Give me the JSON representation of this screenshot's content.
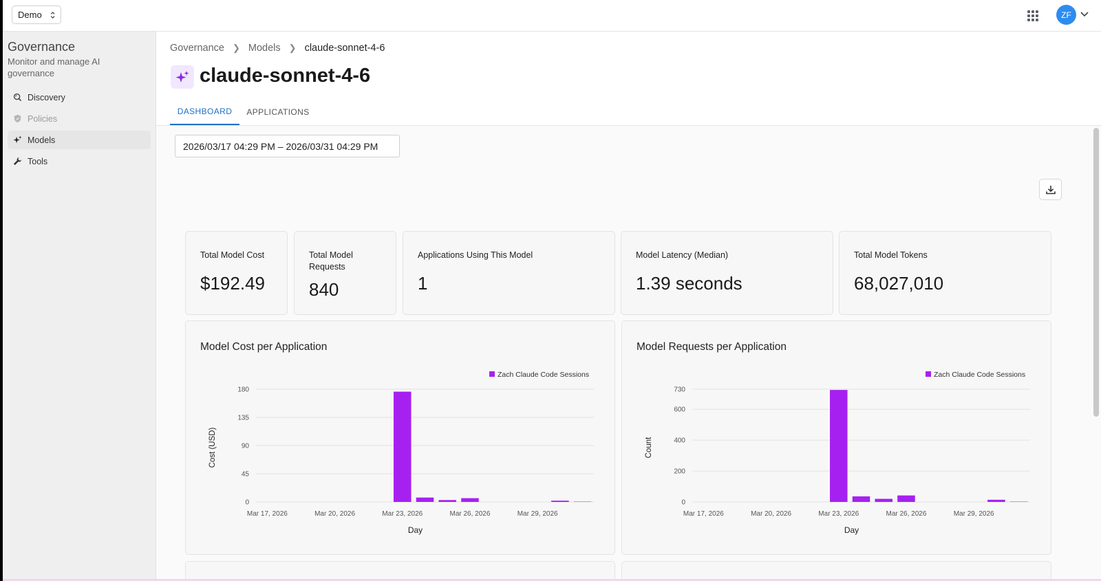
{
  "topbar": {
    "org_select": "Demo",
    "avatar_initials": "ZF"
  },
  "sidebar": {
    "title": "Governance",
    "subtitle": "Monitor and manage AI governance",
    "items": [
      {
        "label": "Discovery",
        "icon": "discovery-icon",
        "state": "normal"
      },
      {
        "label": "Policies",
        "icon": "shield-icon",
        "state": "disabled"
      },
      {
        "label": "Models",
        "icon": "sparkle-icon",
        "state": "active"
      },
      {
        "label": "Tools",
        "icon": "wrench-icon",
        "state": "normal"
      }
    ]
  },
  "breadcrumb": [
    "Governance",
    "Models",
    "claude-sonnet-4-6"
  ],
  "page": {
    "title": "claude-sonnet-4-6",
    "tabs": [
      "DASHBOARD",
      "APPLICATIONS"
    ],
    "active_tab": "DASHBOARD",
    "date_range": "2026/03/17 04:29 PM – 2026/03/31 04:29 PM"
  },
  "stats": [
    {
      "label": "Total Model Cost",
      "value": "$192.49"
    },
    {
      "label": "Total Model Requests",
      "value": "840"
    },
    {
      "label": "Applications Using This Model",
      "value": "1"
    },
    {
      "label": "Model Latency (Median)",
      "value": "1.39 seconds"
    },
    {
      "label": "Total Model Tokens",
      "value": "68,027,010"
    }
  ],
  "colors": {
    "accent": "#1f6fc5",
    "series": "#a621f0",
    "avatar": "#2d8cf0"
  },
  "chart_data": [
    {
      "type": "bar",
      "title": "Model Cost per Application",
      "xlabel": "Day",
      "ylabel": "Cost (USD)",
      "x": [
        "Mar 17, 2026",
        "Mar 18, 2026",
        "Mar 19, 2026",
        "Mar 20, 2026",
        "Mar 21, 2026",
        "Mar 22, 2026",
        "Mar 23, 2026",
        "Mar 24, 2026",
        "Mar 25, 2026",
        "Mar 26, 2026",
        "Mar 27, 2026",
        "Mar 28, 2026",
        "Mar 29, 2026",
        "Mar 30, 2026",
        "Mar 31, 2026"
      ],
      "x_ticks": [
        "Mar 17, 2026",
        "Mar 20, 2026",
        "Mar 23, 2026",
        "Mar 26, 2026",
        "Mar 29, 2026"
      ],
      "y_ticks": [
        0,
        45,
        90,
        135,
        180
      ],
      "ylim": [
        0,
        180
      ],
      "legend": "top-right",
      "grid": true,
      "series": [
        {
          "name": "Zach Claude Code Sessions",
          "values": [
            0,
            0,
            0,
            0,
            0,
            0,
            176,
            7,
            3,
            6,
            0,
            0,
            0,
            2,
            0.5
          ]
        }
      ]
    },
    {
      "type": "bar",
      "title": "Model Requests per Application",
      "xlabel": "Day",
      "ylabel": "Count",
      "x": [
        "Mar 17, 2026",
        "Mar 18, 2026",
        "Mar 19, 2026",
        "Mar 20, 2026",
        "Mar 21, 2026",
        "Mar 22, 2026",
        "Mar 23, 2026",
        "Mar 24, 2026",
        "Mar 25, 2026",
        "Mar 26, 2026",
        "Mar 27, 2026",
        "Mar 28, 2026",
        "Mar 29, 2026",
        "Mar 30, 2026",
        "Mar 31, 2026"
      ],
      "x_ticks": [
        "Mar 17, 2026",
        "Mar 20, 2026",
        "Mar 23, 2026",
        "Mar 26, 2026",
        "Mar 29, 2026"
      ],
      "y_ticks": [
        0,
        200,
        400,
        600,
        730
      ],
      "ylim": [
        0,
        730
      ],
      "legend": "top-right",
      "grid": true,
      "series": [
        {
          "name": "Zach Claude Code Sessions",
          "values": [
            0,
            0,
            0,
            0,
            0,
            0,
            725,
            36,
            20,
            42,
            0,
            0,
            0,
            14,
            2
          ]
        }
      ]
    }
  ]
}
